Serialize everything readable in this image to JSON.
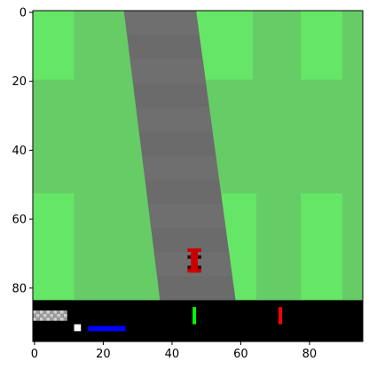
{
  "axes": {
    "x_range": [
      -0.5,
      95.5
    ],
    "y_range": [
      95.5,
      -0.5
    ],
    "x_ticks": [
      0,
      20,
      40,
      60,
      80
    ],
    "y_ticks": [
      0,
      20,
      40,
      60,
      80
    ],
    "y_inverted": true,
    "grid": false
  },
  "colors": {
    "grass": "#66cc66",
    "grass_light": "#66e666",
    "road": "#6b6b6b",
    "road_light": "#727272",
    "car": "#cc0000",
    "car_wheel": "#3a0000",
    "hud_bg": "#000000",
    "speed_bar": "#ffffff",
    "abs_bar": "#0000ff",
    "steer_bar": "#00ff00",
    "gyro_bar": "#ff0000"
  },
  "scene": {
    "field": {
      "x": [
        0,
        96
      ],
      "y": [
        0,
        84
      ]
    },
    "light_grass_tiles": [
      {
        "x": [
          0,
          12
        ],
        "y": [
          0,
          20
        ]
      },
      {
        "x": [
          0,
          12
        ],
        "y": [
          53,
          84
        ]
      },
      {
        "x": [
          47,
          64
        ],
        "y": [
          0,
          20
        ]
      },
      {
        "x": [
          55,
          65
        ],
        "y": [
          53,
          84
        ]
      },
      {
        "x": [
          78,
          90
        ],
        "y": [
          0,
          20
        ]
      },
      {
        "x": [
          78,
          90
        ],
        "y": [
          53,
          84
        ]
      }
    ],
    "road_polygon": [
      [
        26.5,
        0
      ],
      [
        47.5,
        0
      ],
      [
        59,
        84
      ],
      [
        37,
        84
      ]
    ],
    "car": {
      "x": 47,
      "y": 73,
      "heading_deg": 0
    },
    "hud": {
      "y": [
        84,
        96
      ],
      "speed_bar": {
        "x": [
          12,
          14
        ],
        "y": [
          91,
          93
        ]
      },
      "abs_bars": {
        "x": [
          16,
          27
        ],
        "y": [
          91.5,
          93
        ]
      },
      "steering_bar": {
        "x": [
          46.5,
          47.5
        ],
        "y": [
          86,
          91
        ]
      },
      "gyro_bar": {
        "x": [
          71.5,
          72.5
        ],
        "y": [
          86,
          91
        ]
      },
      "score_blur": {
        "x": [
          0,
          10
        ],
        "y": [
          87,
          90
        ]
      }
    }
  }
}
